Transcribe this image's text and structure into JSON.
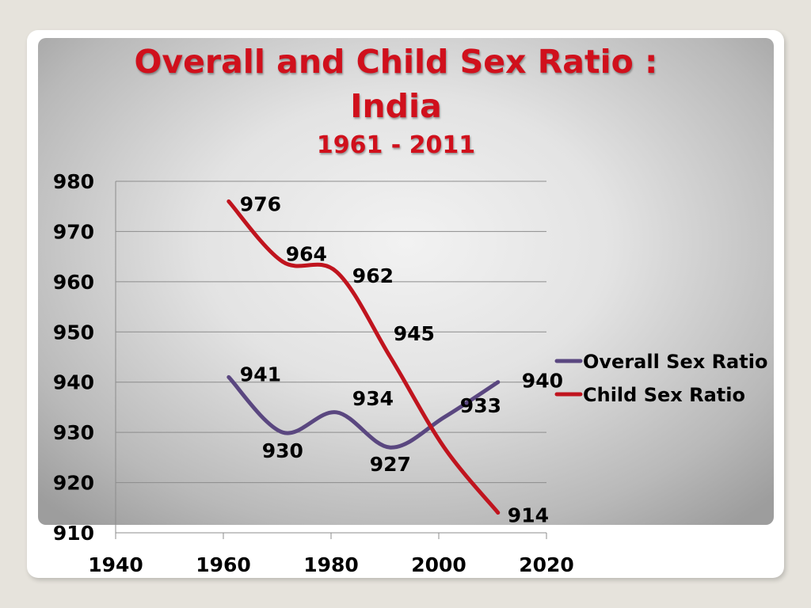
{
  "chart_data": {
    "type": "line",
    "title": "Overall and Child Sex Ratio :",
    "title_line2": "India",
    "subtitle": "1961 - 2011",
    "x": [
      1961,
      1971,
      1981,
      1991,
      2001,
      2011
    ],
    "series": [
      {
        "name": "Overall Sex Ratio",
        "color": "#5a4780",
        "values": [
          941,
          930,
          934,
          927,
          933,
          940
        ]
      },
      {
        "name": "Child Sex Ratio",
        "color": "#c0141e",
        "values": [
          976,
          964,
          962,
          945,
          927,
          914
        ]
      }
    ],
    "xlim": [
      1940,
      2020
    ],
    "ylim": [
      910,
      980
    ],
    "x_ticks": [
      "1940",
      "1960",
      "1980",
      "2000",
      "2020"
    ],
    "y_ticks": [
      "910",
      "920",
      "930",
      "940",
      "950",
      "960",
      "970",
      "980"
    ],
    "data_labels": {
      "Overall Sex Ratio": [
        "941",
        "930",
        "934",
        "927",
        "933",
        "940"
      ],
      "Child Sex Ratio": [
        "976",
        "964",
        "962",
        "945",
        "",
        "914"
      ]
    },
    "grid": true,
    "legend_position": "right",
    "smoothed": true
  }
}
